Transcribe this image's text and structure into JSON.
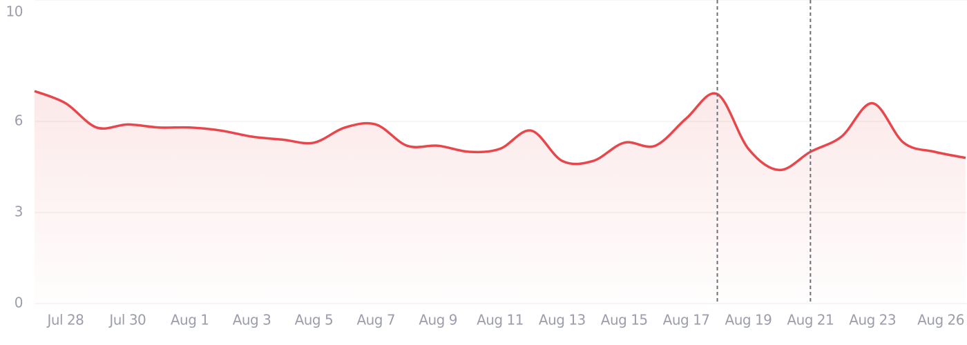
{
  "chart_data": {
    "type": "line",
    "categories": [
      null,
      "Jul 28",
      null,
      "Jul 30",
      null,
      "Aug 1",
      null,
      "Aug 3",
      null,
      "Aug 5",
      null,
      "Aug 7",
      null,
      "Aug 9",
      null,
      "Aug 11",
      null,
      "Aug 13",
      null,
      "Aug 15",
      null,
      "Aug 17",
      null,
      "Aug 19",
      null,
      "Aug 21",
      null,
      "Aug 23",
      null,
      null,
      "Aug 26"
    ],
    "series": [
      {
        "color": "#e8464a",
        "values": [
          7.0,
          6.6,
          5.8,
          5.9,
          5.8,
          5.8,
          5.7,
          5.5,
          5.4,
          5.3,
          5.8,
          5.9,
          5.2,
          5.2,
          5.0,
          5.1,
          5.7,
          4.7,
          4.7,
          5.3,
          5.2,
          6.1,
          6.9,
          5.1,
          4.4,
          5.0,
          5.5,
          6.6,
          5.3,
          5.0,
          4.8
        ]
      }
    ],
    "vertical_lines": [
      22,
      25
    ],
    "ylim": [
      0,
      10
    ],
    "yticks": [
      0,
      3,
      6,
      10
    ],
    "grid": true
  }
}
